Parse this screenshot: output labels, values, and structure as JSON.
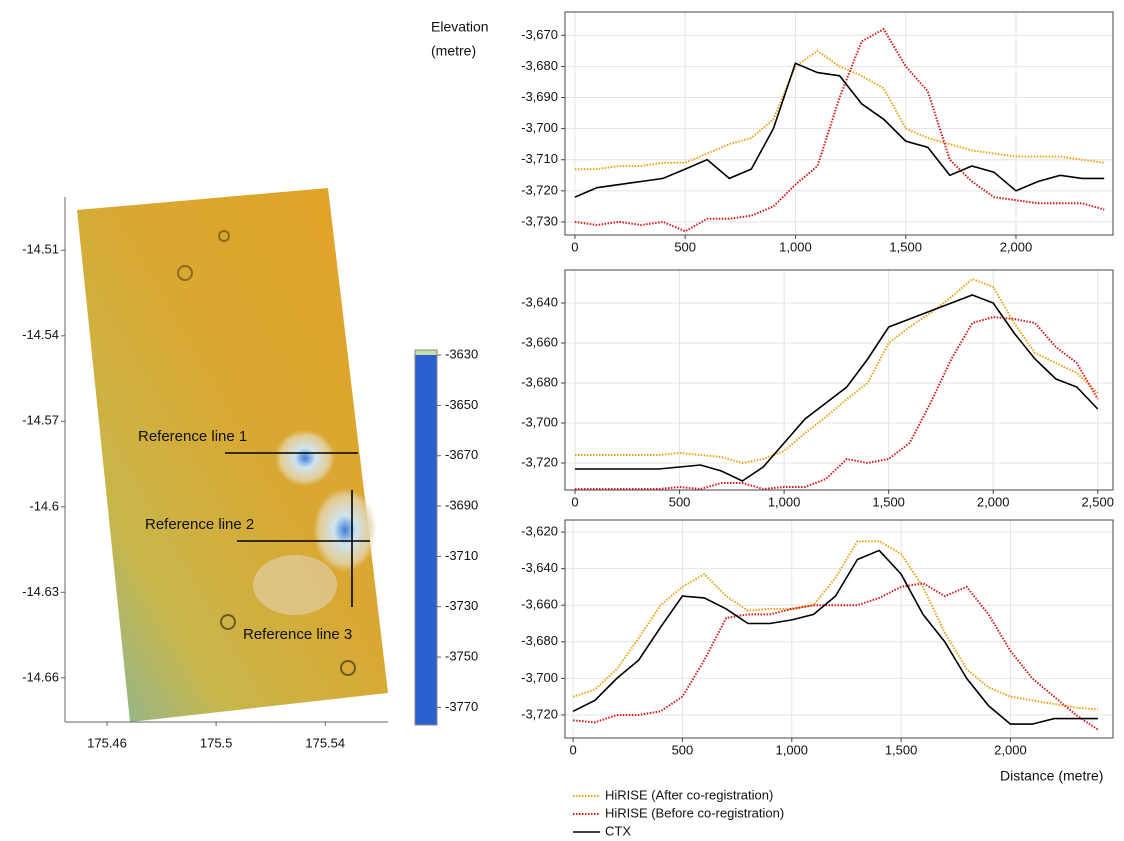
{
  "chart_data": [
    {
      "type": "map",
      "xlim": [
        175.4446,
        175.563
      ],
      "ylim": [
        -14.6755,
        -14.4913
      ],
      "xticks": [
        175.46,
        175.5,
        175.54
      ],
      "yticks": [
        -14.51,
        -14.54,
        -14.57,
        -14.6,
        -14.63,
        -14.66
      ],
      "annotations": [
        "Reference line 1",
        "Reference line 2",
        "Reference line 3"
      ],
      "colorbar": {
        "lim": [
          -3777,
          -3628
        ],
        "ticks": [
          -3630,
          -3650,
          -3670,
          -3690,
          -3710,
          -3730,
          -3750,
          -3770
        ],
        "colors": [
          "#2a5fd0",
          "#6cb6e2",
          "#d6eef2",
          "#e6dcc2",
          "#d8b048",
          "#e6a020",
          "#7cbf72",
          "#cadfa4"
        ]
      }
    },
    {
      "type": "line",
      "y_label": [
        "Elevation",
        "(metre)"
      ],
      "grid": true,
      "x": [
        0,
        100,
        200,
        300,
        400,
        500,
        600,
        700,
        800,
        900,
        1000,
        1100,
        1200,
        1300,
        1400,
        1500,
        1600,
        1700,
        1800,
        1900,
        2000,
        2100,
        2200,
        2300,
        2400
      ],
      "xlim": [
        -45,
        2440
      ],
      "ylim": [
        -3734.2,
        -3662.5
      ],
      "xticks": [
        0,
        500,
        {
          "value": 1000,
          "label": "1,000"
        },
        {
          "value": 1500,
          "label": "1,500"
        },
        {
          "value": 2000,
          "label": "2,000"
        }
      ],
      "yticks": [
        {
          "value": -3670,
          "label": "-3,670"
        },
        {
          "value": -3680,
          "label": "-3,680"
        },
        {
          "value": -3690,
          "label": "-3,690"
        },
        {
          "value": -3700,
          "label": "-3,700"
        },
        {
          "value": -3710,
          "label": "-3,710"
        },
        {
          "value": -3720,
          "label": "-3,720"
        },
        {
          "value": -3730,
          "label": "-3,730"
        }
      ],
      "series": [
        {
          "name": "HiRISE (After co-registration)",
          "color": "#f0a010",
          "style": "dotted",
          "values": [
            -3713,
            -3713,
            -3712,
            -3712,
            -3711,
            -3711,
            -3708,
            -3705,
            -3703,
            -3697,
            -3680,
            -3675,
            -3680,
            -3683,
            -3687,
            -3700,
            -3703,
            -3705,
            -3707,
            -3708,
            -3709,
            -3709,
            -3709,
            -3710,
            -3711
          ]
        },
        {
          "name": "HiRISE (Before co-registration)",
          "color": "#d81818",
          "style": "dotted",
          "values": [
            -3730,
            -3731,
            -3730,
            -3731,
            -3730,
            -3733,
            -3729,
            -3729,
            -3728,
            -3725,
            -3718,
            -3712,
            -3690,
            -3672,
            -3668,
            -3680,
            -3688,
            -3710,
            -3717,
            -3722,
            -3723,
            -3724,
            -3724,
            -3724,
            -3726
          ]
        },
        {
          "name": "CTX",
          "color": "#000000",
          "style": "solid",
          "values": [
            -3722,
            -3719,
            -3718,
            -3717,
            -3716,
            -3713,
            -3710,
            -3716,
            -3713,
            -3700,
            -3679,
            -3682,
            -3683,
            -3692,
            -3697,
            -3704,
            -3706,
            -3715,
            -3712,
            -3714,
            -3720,
            -3717,
            -3715,
            -3716,
            -3716
          ]
        }
      ]
    },
    {
      "type": "line",
      "grid": true,
      "x": [
        0,
        100,
        200,
        300,
        400,
        500,
        600,
        700,
        800,
        900,
        1000,
        1100,
        1200,
        1300,
        1400,
        1500,
        1600,
        1700,
        1800,
        1900,
        2000,
        2100,
        2200,
        2300,
        2400,
        2500
      ],
      "xlim": [
        -48,
        2573
      ],
      "ylim": [
        -3733.5,
        -3623.5
      ],
      "xticks": [
        0,
        500,
        {
          "value": 1000,
          "label": "1,000"
        },
        {
          "value": 1500,
          "label": "1,500"
        },
        {
          "value": 2000,
          "label": "2,000"
        },
        {
          "value": 2500,
          "label": "2,500"
        }
      ],
      "yticks": [
        {
          "value": -3640,
          "label": "-3,640"
        },
        {
          "value": -3660,
          "label": "-3,660"
        },
        {
          "value": -3680,
          "label": "-3,680"
        },
        {
          "value": -3700,
          "label": "-3,700"
        },
        {
          "value": -3720,
          "label": "-3,720"
        }
      ],
      "series": [
        {
          "color": "#f0a010",
          "style": "dotted",
          "values": [
            -3716,
            -3716,
            -3716,
            -3716,
            -3716,
            -3715,
            -3716,
            -3717,
            -3720,
            -3718,
            -3714,
            -3705,
            -3697,
            -3688,
            -3680,
            -3660,
            -3652,
            -3645,
            -3637,
            -3628,
            -3632,
            -3650,
            -3665,
            -3670,
            -3675,
            -3685
          ]
        },
        {
          "color": "#d81818",
          "style": "dotted",
          "values": [
            -3733,
            -3733,
            -3733,
            -3733,
            -3733,
            -3732,
            -3733,
            -3730,
            -3730,
            -3733,
            -3732,
            -3732,
            -3728,
            -3718,
            -3720,
            -3718,
            -3710,
            -3690,
            -3668,
            -3650,
            -3647,
            -3648,
            -3650,
            -3662,
            -3670,
            -3688
          ]
        },
        {
          "color": "#000000",
          "style": "solid",
          "values": [
            -3723,
            -3723,
            -3723,
            -3723,
            -3723,
            -3722,
            -3721,
            -3724,
            -3729,
            -3722,
            -3710,
            -3698,
            -3690,
            -3682,
            -3668,
            -3652,
            -3648,
            -3644,
            -3640,
            -3636,
            -3640,
            -3655,
            -3668,
            -3678,
            -3682,
            -3693
          ]
        }
      ]
    },
    {
      "type": "line",
      "x_label": "Distance (metre)",
      "grid": true,
      "x": [
        0,
        100,
        200,
        300,
        400,
        500,
        600,
        700,
        800,
        900,
        1000,
        1100,
        1200,
        1300,
        1400,
        1500,
        1600,
        1700,
        1800,
        1900,
        2000,
        2100,
        2200,
        2300,
        2400
      ],
      "xlim": [
        -37,
        2469
      ],
      "ylim": [
        -3732.6,
        -3613.4
      ],
      "xticks": [
        0,
        500,
        {
          "value": 1000,
          "label": "1,000"
        },
        {
          "value": 1500,
          "label": "1,500"
        },
        {
          "value": 2000,
          "label": "2,000"
        }
      ],
      "yticks": [
        {
          "value": -3620,
          "label": "-3,620"
        },
        {
          "value": -3640,
          "label": "-3,640"
        },
        {
          "value": -3660,
          "label": "-3,660"
        },
        {
          "value": -3680,
          "label": "-3,680"
        },
        {
          "value": -3700,
          "label": "-3,700"
        },
        {
          "value": -3720,
          "label": "-3,720"
        }
      ],
      "series": [
        {
          "color": "#f0a010",
          "style": "dotted",
          "values": [
            -3710,
            -3706,
            -3695,
            -3678,
            -3660,
            -3650,
            -3643,
            -3655,
            -3663,
            -3662,
            -3662,
            -3660,
            -3645,
            -3625,
            -3625,
            -3632,
            -3650,
            -3675,
            -3695,
            -3705,
            -3710,
            -3712,
            -3714,
            -3716,
            -3717
          ]
        },
        {
          "color": "#d81818",
          "style": "dotted",
          "values": [
            -3723,
            -3724,
            -3720,
            -3720,
            -3718,
            -3710,
            -3690,
            -3667,
            -3665,
            -3665,
            -3662,
            -3660,
            -3660,
            -3660,
            -3656,
            -3650,
            -3648,
            -3655,
            -3650,
            -3665,
            -3685,
            -3700,
            -3710,
            -3720,
            -3728
          ]
        },
        {
          "color": "#000000",
          "style": "solid",
          "values": [
            -3718,
            -3712,
            -3700,
            -3690,
            -3672,
            -3655,
            -3656,
            -3662,
            -3670,
            -3670,
            -3668,
            -3665,
            -3655,
            -3635,
            -3630,
            -3643,
            -3665,
            -3680,
            -3700,
            -3715,
            -3725,
            -3725,
            -3722,
            -3722,
            -3722
          ]
        }
      ]
    }
  ]
}
